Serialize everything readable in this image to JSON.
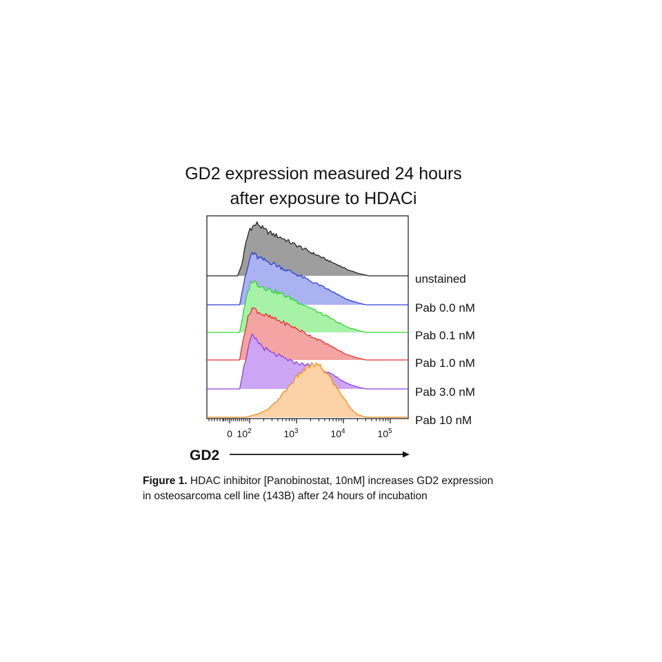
{
  "figure": {
    "title_line1": "GD2 expression measured 24 hours",
    "title_line2": "after exposure to HDACi",
    "caption_label": "Figure 1.",
    "caption_text_line1": " HDAC inhibitor [Panobinostat, 10nM] increases GD2 expression",
    "caption_text_line2": "in osteosarcoma cell line (143B) after 24 hours of incubation"
  },
  "chart_data": {
    "type": "area",
    "subtype": "offset histogram overlay (flow cytometry)",
    "xlabel": "GD2",
    "x_scale": "biexponential (log above 10^2)",
    "x_ticks": [
      {
        "value": 0,
        "base": "0",
        "exp": ""
      },
      {
        "value": 100,
        "base": "10",
        "exp": "2"
      },
      {
        "value": 1000,
        "base": "10",
        "exp": "3"
      },
      {
        "value": 10000,
        "base": "10",
        "exp": "4"
      },
      {
        "value": 100000,
        "base": "10",
        "exp": "5"
      }
    ],
    "xlim": [
      -30,
      150000
    ],
    "y_units": "relative cell count (normalized to mode)",
    "series": [
      {
        "name": "unstained",
        "color": "#222222",
        "fill": "#9e9e9e",
        "x": [
          40,
          60,
          80,
          100,
          150,
          200,
          300,
          500,
          800,
          1200,
          2000,
          3000,
          5000,
          8000,
          12000,
          20000,
          35000
        ],
        "y": [
          0.0,
          0.2,
          0.6,
          0.9,
          1.0,
          0.88,
          0.8,
          0.72,
          0.62,
          0.55,
          0.45,
          0.38,
          0.28,
          0.2,
          0.12,
          0.05,
          0.0
        ]
      },
      {
        "name": "Pab 0.0 nM",
        "color": "#2a3ed4",
        "fill": "#aab2f2",
        "x": [
          50,
          70,
          90,
          110,
          150,
          200,
          300,
          500,
          800,
          1200,
          2000,
          3000,
          5000,
          8000,
          12000,
          20000,
          30000
        ],
        "y": [
          0.0,
          0.4,
          0.7,
          1.0,
          0.9,
          0.85,
          0.8,
          0.7,
          0.62,
          0.55,
          0.45,
          0.38,
          0.28,
          0.18,
          0.1,
          0.04,
          0.0
        ]
      },
      {
        "name": "Pab 0.1 nM",
        "color": "#2ed62e",
        "fill": "#a8f2a8",
        "x": [
          50,
          70,
          90,
          110,
          150,
          200,
          300,
          500,
          800,
          1200,
          2000,
          3000,
          5000,
          8000,
          12000,
          20000,
          30000
        ],
        "y": [
          0.0,
          0.4,
          0.75,
          1.0,
          0.92,
          0.86,
          0.8,
          0.72,
          0.64,
          0.56,
          0.46,
          0.38,
          0.28,
          0.18,
          0.1,
          0.04,
          0.0
        ]
      },
      {
        "name": "Pab 1.0 nM",
        "color": "#e0322e",
        "fill": "#f4a4a2",
        "x": [
          50,
          70,
          90,
          110,
          150,
          200,
          300,
          500,
          800,
          1200,
          2000,
          3000,
          5000,
          8000,
          12000,
          20000,
          30000
        ],
        "y": [
          0.0,
          0.45,
          0.78,
          1.0,
          0.93,
          0.86,
          0.8,
          0.72,
          0.64,
          0.56,
          0.46,
          0.38,
          0.28,
          0.18,
          0.1,
          0.04,
          0.0
        ]
      },
      {
        "name": "Pab 3.0 nM",
        "color": "#8a3ee0",
        "fill": "#cda5f5",
        "x": [
          50,
          70,
          90,
          110,
          150,
          200,
          300,
          500,
          800,
          1200,
          2000,
          3000,
          5000,
          8000,
          12000,
          20000,
          30000
        ],
        "y": [
          0.0,
          0.4,
          0.72,
          1.0,
          0.9,
          0.78,
          0.68,
          0.6,
          0.52,
          0.48,
          0.45,
          0.4,
          0.3,
          0.2,
          0.1,
          0.04,
          0.0
        ]
      },
      {
        "name": "Pab 10 nM",
        "color": "#f28c1e",
        "fill": "#fcd2a6",
        "x": [
          80,
          150,
          250,
          400,
          600,
          900,
          1200,
          1600,
          2000,
          2600,
          3200,
          4000,
          5000,
          6500,
          8000,
          10000,
          13000,
          16000,
          20000,
          30000
        ],
        "y": [
          0.0,
          0.06,
          0.15,
          0.33,
          0.52,
          0.72,
          0.84,
          0.93,
          0.99,
          1.0,
          0.96,
          0.88,
          0.78,
          0.62,
          0.5,
          0.38,
          0.22,
          0.12,
          0.05,
          0.0
        ]
      }
    ]
  }
}
